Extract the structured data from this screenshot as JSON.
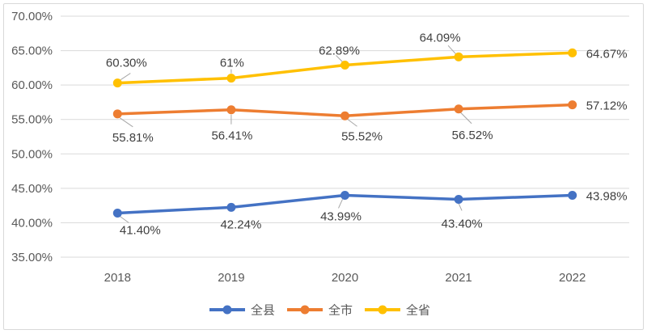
{
  "chart_data": {
    "type": "line",
    "title": "",
    "categories": [
      "2018",
      "2019",
      "2020",
      "2021",
      "2022"
    ],
    "series": [
      {
        "name": "全县",
        "color": "#4472C4",
        "values": [
          41.4,
          42.24,
          43.99,
          43.4,
          43.98
        ],
        "data_labels": [
          "41.40%",
          "42.24%",
          "43.99%",
          "43.40%",
          "43.98%"
        ]
      },
      {
        "name": "全市",
        "color": "#ED7D31",
        "values": [
          55.81,
          56.41,
          55.52,
          56.52,
          57.12
        ],
        "data_labels": [
          "55.81%",
          "56.41%",
          "55.52%",
          "56.52%",
          "57.12%"
        ]
      },
      {
        "name": "全省",
        "color": "#FFC000",
        "values": [
          60.3,
          61,
          62.89,
          64.09,
          64.67
        ],
        "data_labels": [
          "60.30%",
          "61%",
          "62.89%",
          "64.09%",
          "64.67%"
        ]
      }
    ],
    "y_axis": {
      "min": 35,
      "max": 70,
      "step": 5,
      "tick_labels": [
        "35.00%",
        "40.00%",
        "45.00%",
        "50.00%",
        "55.00%",
        "60.00%",
        "65.00%",
        "70.00%"
      ]
    },
    "x_axis": {
      "tick_labels": [
        "2018",
        "2019",
        "2020",
        "2021",
        "2022"
      ]
    },
    "legend": {
      "position": "bottom",
      "entries": [
        "全县",
        "全市",
        "全省"
      ]
    },
    "grid": true,
    "ylim": [
      35,
      70
    ]
  },
  "style": {
    "background": "#FFFFFF",
    "frame_border_color": "#D9D9D9",
    "gridline_color": "#D9D9D9",
    "axis_text_color": "#595959",
    "data_label_color": "#404040",
    "leader_line_color": "#A6A6A6"
  }
}
